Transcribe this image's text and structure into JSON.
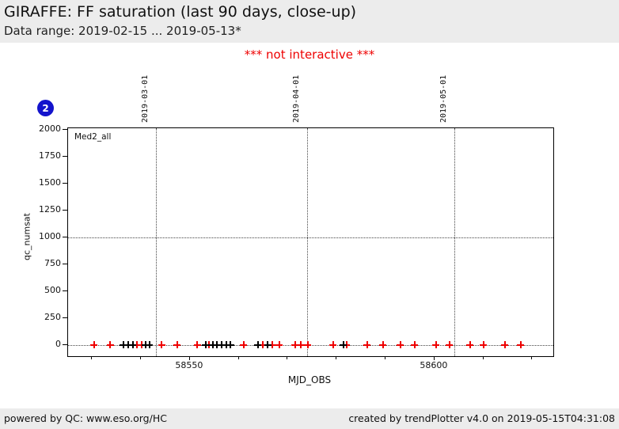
{
  "header": {
    "title": "GIRAFFE: FF saturation (last 90 days, close-up)",
    "data_range": "Data range: 2019-02-15 ... 2019-05-13*"
  },
  "note": "*** not interactive ***",
  "badge": {
    "label": "2",
    "color": "#1414cc"
  },
  "chart_data": {
    "type": "scatter",
    "title": "GIRAFFE: FF saturation (last 90 days, close-up)",
    "legend": "Med2_all",
    "legend_position": "top-left-inside",
    "xlabel": "MJD_OBS",
    "ylabel": "qc_numsat",
    "xlim": [
      58525.1,
      58624.3
    ],
    "ylim": [
      -103,
      2015
    ],
    "grid": "dotted",
    "y_ticks": [
      0,
      250,
      500,
      750,
      1000,
      1250,
      1500,
      1750,
      2000
    ],
    "x_minor_ticks": [
      58530,
      58540,
      58550,
      58560,
      58570,
      58580,
      58590,
      58600,
      58610,
      58620
    ],
    "x_major_ticks": [
      {
        "value": 58550,
        "label": "58550"
      },
      {
        "value": 58600,
        "label": "58600"
      }
    ],
    "h_gridlines": [
      0,
      1000
    ],
    "date_lines": [
      {
        "label": "2019-03-01",
        "mjd": 58543
      },
      {
        "label": "2019-04-01",
        "mjd": 58574
      },
      {
        "label": "2019-05-01",
        "mjd": 58604
      }
    ],
    "series": [
      {
        "name": "red",
        "color": "#ee0000",
        "marker": "plus",
        "y": 0,
        "x": [
          58530.4,
          58533.7,
          58539.2,
          58540.1,
          58544.2,
          58547.4,
          58551.5,
          58553.9,
          58561.0,
          58564.9,
          58566.8,
          58568.3,
          58571.5,
          58572.7,
          58574.1,
          58579.3,
          58582.0,
          58586.2,
          58589.5,
          58593.0,
          58595.9,
          58600.3,
          58603.1,
          58607.3,
          58610.0,
          58614.4,
          58617.6
        ]
      },
      {
        "name": "black",
        "color": "#000000",
        "marker": "plus",
        "y": 0,
        "x": [
          58536.4,
          58537.4,
          58538.3,
          58540.9,
          58541.7,
          58553.2,
          58554.7,
          58555.5,
          58556.5,
          58557.4,
          58558.3,
          58563.9,
          58565.9,
          58581.4
        ]
      }
    ]
  },
  "footer": {
    "left": "powered by QC: www.eso.org/HC",
    "right": "created by trendPlotter v4.0 on 2019-05-15T04:31:08"
  }
}
